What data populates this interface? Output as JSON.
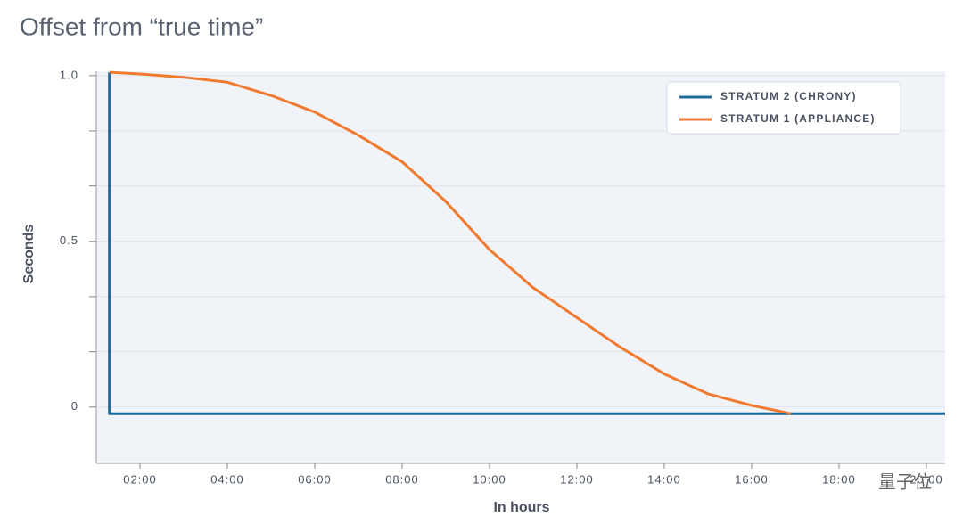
{
  "chart_data": {
    "type": "line",
    "title": "Offset from “true time”",
    "x_label": "In hours",
    "y_label": "Seconds",
    "xlim": [
      1,
      20.43
    ],
    "xticks": [
      {
        "value": 2,
        "label": "02:00"
      },
      {
        "value": 4,
        "label": "04:00"
      },
      {
        "value": 6,
        "label": "06:00"
      },
      {
        "value": 8,
        "label": "08:00"
      },
      {
        "value": 10,
        "label": "10:00"
      },
      {
        "value": 12,
        "label": "12:00"
      },
      {
        "value": 14,
        "label": "14:00"
      },
      {
        "value": 16,
        "label": "16:00"
      },
      {
        "value": 18,
        "label": "18:00"
      },
      {
        "value": 20,
        "label": "20:00"
      }
    ],
    "ylim": [
      -0.17,
      1.013
    ],
    "yticks": [
      0,
      0.5,
      {
        "value": 1,
        "label": "1.0"
      }
    ],
    "yminor": [
      0.167,
      0.333,
      0.667,
      0.833
    ],
    "grid": true,
    "legend": "upper right",
    "series": [
      {
        "name": "STRATUM 2 (CHRONY)",
        "color": "#1f6a9a",
        "x": [
          1.3,
          1.3,
          20.43
        ],
        "values": [
          1.01,
          -0.02,
          -0.02
        ]
      },
      {
        "name": "STRATUM 1 (APPLIANCE)",
        "color": "#f07a30",
        "x": [
          1.3,
          2,
          3,
          4,
          5,
          6,
          7,
          8,
          9,
          10,
          11,
          12,
          13,
          14,
          15,
          16,
          16.9
        ],
        "values": [
          1.01,
          1.005,
          0.995,
          0.98,
          0.94,
          0.89,
          0.82,
          0.74,
          0.62,
          0.475,
          0.36,
          0.27,
          0.18,
          0.1,
          0.04,
          0.005,
          -0.02
        ]
      }
    ],
    "watermark": "量子位"
  }
}
